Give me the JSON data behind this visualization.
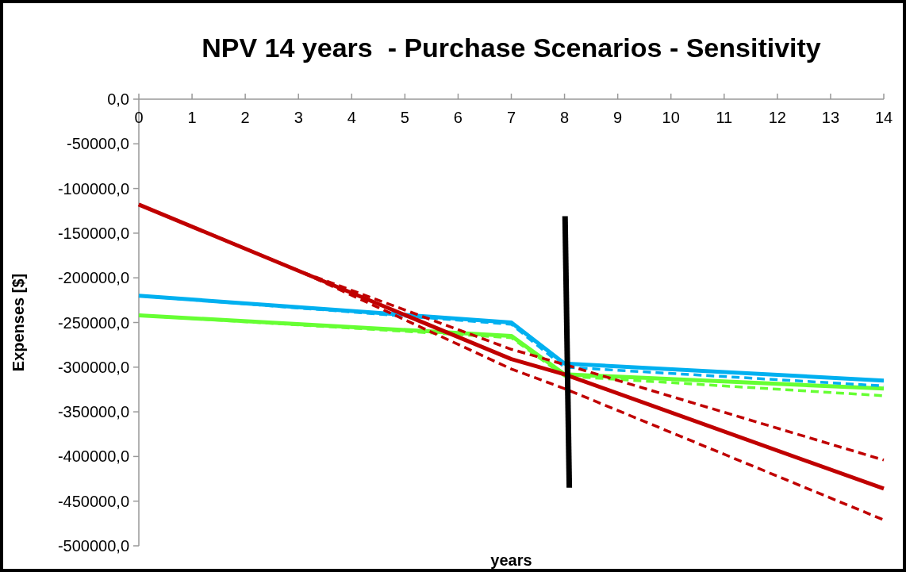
{
  "chart_data": {
    "type": "line",
    "title": "NPV 14 years  - Purchase Scenarios - Sensitivity",
    "xlabel": "years",
    "ylabel": "Expenses [$]",
    "xlim": [
      0,
      14
    ],
    "xticks": [
      0,
      1,
      2,
      3,
      4,
      5,
      6,
      7,
      8,
      9,
      10,
      11,
      12,
      13,
      14
    ],
    "ylim": [
      -500000,
      0
    ],
    "yticks": [
      {
        "value": 0,
        "label": "0,0"
      },
      {
        "value": -50000,
        "label": "-50000,0"
      },
      {
        "value": -100000,
        "label": "-100000,0"
      },
      {
        "value": -150000,
        "label": "-150000,0"
      },
      {
        "value": -200000,
        "label": "-200000,0"
      },
      {
        "value": -250000,
        "label": "-250000,0"
      },
      {
        "value": -300000,
        "label": "-300000,0"
      },
      {
        "value": -350000,
        "label": "-350000,0"
      },
      {
        "value": -400000,
        "label": "-400000,0"
      },
      {
        "value": -450000,
        "label": "-450000,0"
      },
      {
        "value": -500000,
        "label": "-500000,0"
      }
    ],
    "grid": false,
    "marker": "none",
    "series": [
      {
        "color": "#66ff33",
        "line_style": "dashed",
        "x": [
          0,
          7,
          8,
          14
        ],
        "values": [
          -242000,
          -267000,
          -310000,
          -332000
        ]
      },
      {
        "color": "#66ff33",
        "line_style": "solid",
        "x": [
          0,
          7,
          8,
          14
        ],
        "values": [
          -242000,
          -265000,
          -308000,
          -324000
        ]
      },
      {
        "color": "#00b0f0",
        "line_style": "dashed",
        "x": [
          0,
          7,
          8,
          14
        ],
        "values": [
          -220000,
          -252000,
          -300000,
          -321000
        ]
      },
      {
        "color": "#00b0f0",
        "line_style": "solid",
        "x": [
          0,
          7,
          8,
          14
        ],
        "values": [
          -220000,
          -250000,
          -296000,
          -315000
        ]
      },
      {
        "color": "#c00000",
        "line_style": "dashed",
        "x": [
          0,
          3,
          7,
          8,
          14
        ],
        "values": [
          -118000,
          -192000,
          -280000,
          -297000,
          -404000
        ]
      },
      {
        "color": "#c00000",
        "line_style": "dashed",
        "x": [
          0,
          3,
          7,
          8,
          14
        ],
        "values": [
          -118000,
          -192000,
          -302000,
          -324000,
          -471000
        ]
      },
      {
        "color": "#c00000",
        "line_style": "solid",
        "x": [
          0,
          7,
          8,
          14
        ],
        "values": [
          -118000,
          -291000,
          -308000,
          -436000
        ]
      },
      {
        "color": "#000000",
        "line_style": "solid",
        "x": [
          8.01,
          8.09
        ],
        "values": [
          -131000,
          -435000
        ]
      }
    ]
  }
}
